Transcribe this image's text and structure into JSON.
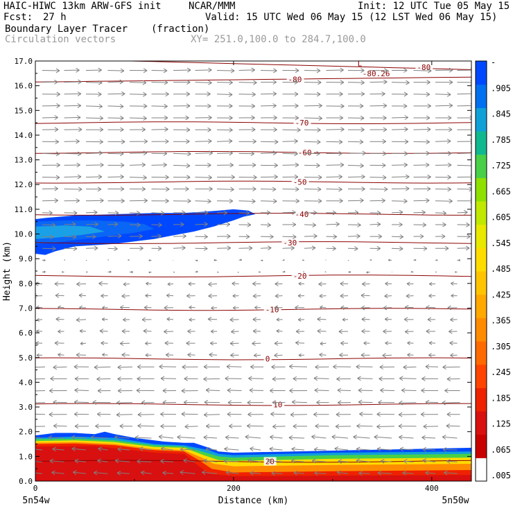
{
  "header": {
    "model": "HAIC-HIWC 13km ARW-GFS init",
    "org": "NCAR/MMM",
    "init": "Init: 12 UTC Tue 05 May 15",
    "fcst_label": "Fcst:",
    "fcst_value": "27 h",
    "valid": "Valid: 15 UTC Wed 06 May 15 (12 LST Wed 06 May 15)",
    "field": "Boundary Layer Tracer",
    "units": "(fraction)",
    "vectors": "Circulation vectors",
    "xy": "XY= 251.0,100.0 to 284.7,100.0"
  },
  "chart_data": {
    "type": "heatmap",
    "xlabel": "Distance (km)",
    "ylabel": "Height (km)",
    "xlim": [
      0,
      440
    ],
    "ylim": [
      0,
      17
    ],
    "x_ticks": [
      "0",
      "200",
      "400"
    ],
    "x_tick_values": [
      0,
      200,
      400
    ],
    "x_endpoints": [
      "5n54w",
      "5n50w"
    ],
    "y_ticks": [
      "0.0",
      "1.0",
      "2.0",
      "3.0",
      "4.0",
      "5.0",
      "6.0",
      "7.0",
      "8.0",
      "9.0",
      "10.0",
      "11.0",
      "12.0",
      "13.0",
      "14.0",
      "15.0",
      "16.0",
      "17.0"
    ],
    "colorbar_labels": [
      "-",
      ".905",
      ".845",
      ".785",
      ".725",
      ".665",
      ".605",
      ".545",
      ".485",
      ".425",
      ".365",
      ".305",
      ".245",
      ".185",
      ".125",
      ".065",
      ".005"
    ],
    "colorbar_colors": [
      "#ffffff",
      "#c80000",
      "#d81010",
      "#ee2200",
      "#ff4400",
      "#ff6a00",
      "#ff8c00",
      "#ffa800",
      "#ffc400",
      "#ffdc00",
      "#e8e800",
      "#c0e800",
      "#8ee000",
      "#48d048",
      "#10b890",
      "#10a0d8",
      "#0070f0",
      "#0048ff"
    ],
    "temperature_contours": [
      {
        "label": "20",
        "height": 0.8
      },
      {
        "label": "10",
        "height": 3.1
      },
      {
        "label": "0",
        "height": 4.95
      },
      {
        "label": "-10",
        "height": 6.95
      },
      {
        "label": "-20",
        "height": 8.3
      },
      {
        "label": "-30",
        "height": 9.65
      },
      {
        "label": "-40",
        "height": 10.8
      },
      {
        "label": "-50",
        "height": 12.1
      },
      {
        "label": "-60",
        "height": 13.3
      },
      {
        "label": "-70",
        "height": 14.5
      },
      {
        "label": "-80",
        "height": 16.25
      },
      {
        "label": "-80",
        "height": 16.75
      },
      {
        "label": "-80.26",
        "height": 16.5
      }
    ],
    "low_marker": "L",
    "contour_color": "#8b0000",
    "vector_color": "#808080"
  }
}
